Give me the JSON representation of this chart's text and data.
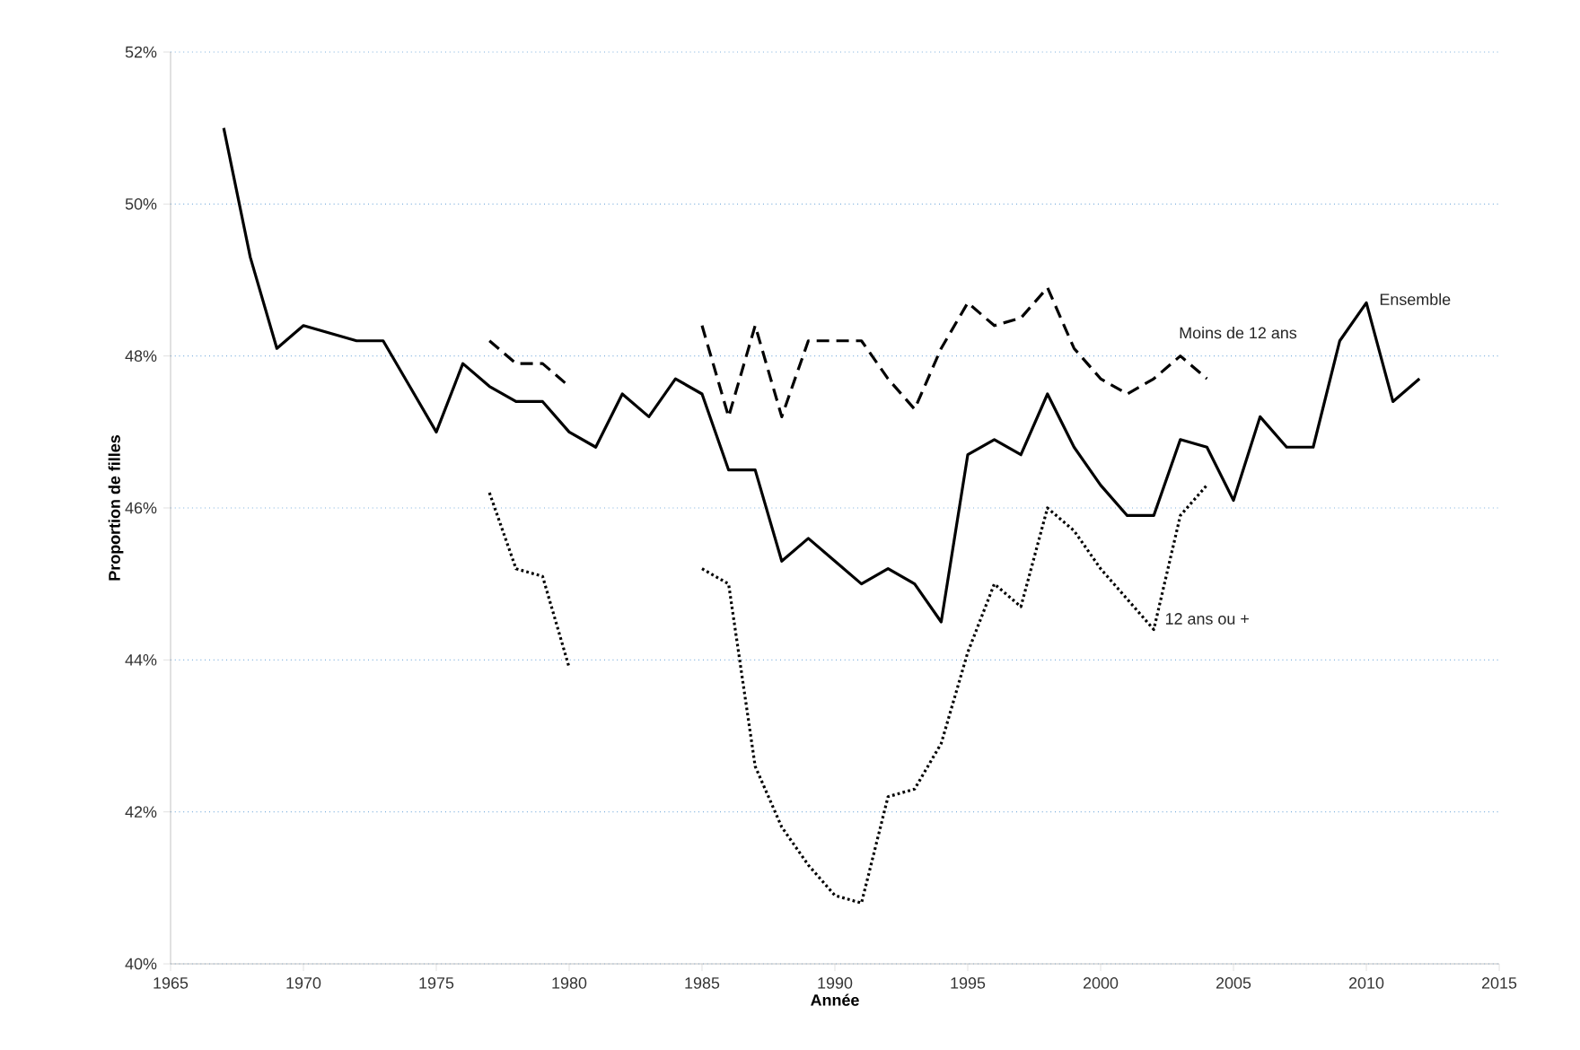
{
  "chart_data": {
    "type": "line",
    "xlabel": "Année",
    "ylabel": "Proportion de filles",
    "xlim": [
      1965,
      2015
    ],
    "xticks": [
      1965,
      1970,
      1975,
      1980,
      1985,
      1990,
      1995,
      2000,
      2005,
      2010,
      2015
    ],
    "ylim": [
      40,
      52
    ],
    "yticks": [
      {
        "value": 40,
        "label": "40%"
      },
      {
        "value": 42,
        "label": "42%"
      },
      {
        "value": 44,
        "label": "44%"
      },
      {
        "value": 46,
        "label": "46%"
      },
      {
        "value": 48,
        "label": "48%"
      },
      {
        "value": 50,
        "label": "50%"
      },
      {
        "value": 52,
        "label": "52%"
      }
    ],
    "grid": "y",
    "legend": false,
    "marker": "none",
    "series": [
      {
        "name": "Ensemble",
        "color": "#000000",
        "line_style": "solid",
        "x": [
          1967,
          1968,
          1969,
          1970,
          1971,
          1972,
          1973,
          1974,
          1975,
          1976,
          1977,
          1978,
          1979,
          1980,
          1981,
          1982,
          1983,
          1984,
          1985,
          1986,
          1987,
          1988,
          1989,
          1990,
          1991,
          1992,
          1993,
          1994,
          1995,
          1996,
          1997,
          1998,
          1999,
          2000,
          2001,
          2002,
          2003,
          2004,
          2005,
          2006,
          2007,
          2008,
          2009,
          2010,
          2011,
          2012
        ],
        "values": [
          51.0,
          49.3,
          48.1,
          48.4,
          48.3,
          48.2,
          48.2,
          47.6,
          47.0,
          47.9,
          47.6,
          47.4,
          47.4,
          47.0,
          46.8,
          47.5,
          47.2,
          47.7,
          47.5,
          46.5,
          46.5,
          45.3,
          45.6,
          45.3,
          45.0,
          45.2,
          45.0,
          44.5,
          46.7,
          46.9,
          46.7,
          47.5,
          46.8,
          46.3,
          45.9,
          45.9,
          46.9,
          46.8,
          46.1,
          47.2,
          46.8,
          46.8,
          48.2,
          48.7,
          47.4,
          47.7
        ]
      },
      {
        "name": "Moins de 12 ans",
        "color": "#000000",
        "line_style": "dashed",
        "x": [
          1977,
          1978,
          1979,
          1980,
          1981,
          1982,
          1983,
          1984,
          1985,
          1986,
          1987,
          1988,
          1989,
          1990,
          1991,
          1992,
          1993,
          1994,
          1995,
          1996,
          1997,
          1998,
          1999,
          2000,
          2001,
          2002,
          2003,
          2004
        ],
        "values": [
          48.2,
          47.9,
          47.9,
          47.6,
          null,
          null,
          null,
          null,
          48.4,
          47.2,
          48.4,
          47.2,
          48.2,
          48.2,
          48.2,
          47.7,
          47.3,
          48.1,
          48.7,
          48.4,
          48.5,
          48.9,
          48.1,
          47.7,
          47.5,
          47.7,
          48.0,
          47.7
        ]
      },
      {
        "name": "12 ans ou +",
        "color": "#000000",
        "line_style": "dotted",
        "x": [
          1977,
          1978,
          1979,
          1980,
          1981,
          1982,
          1983,
          1984,
          1985,
          1986,
          1987,
          1988,
          1989,
          1990,
          1991,
          1992,
          1993,
          1994,
          1995,
          1996,
          1997,
          1998,
          1999,
          2000,
          2001,
          2002,
          2003,
          2004
        ],
        "values": [
          46.2,
          45.2,
          45.1,
          43.9,
          null,
          null,
          null,
          null,
          45.2,
          45.0,
          42.6,
          41.8,
          41.3,
          40.9,
          40.8,
          42.2,
          42.3,
          42.9,
          44.1,
          45.0,
          44.7,
          46.0,
          45.7,
          45.2,
          44.8,
          44.4,
          45.9,
          46.3
        ]
      }
    ]
  }
}
